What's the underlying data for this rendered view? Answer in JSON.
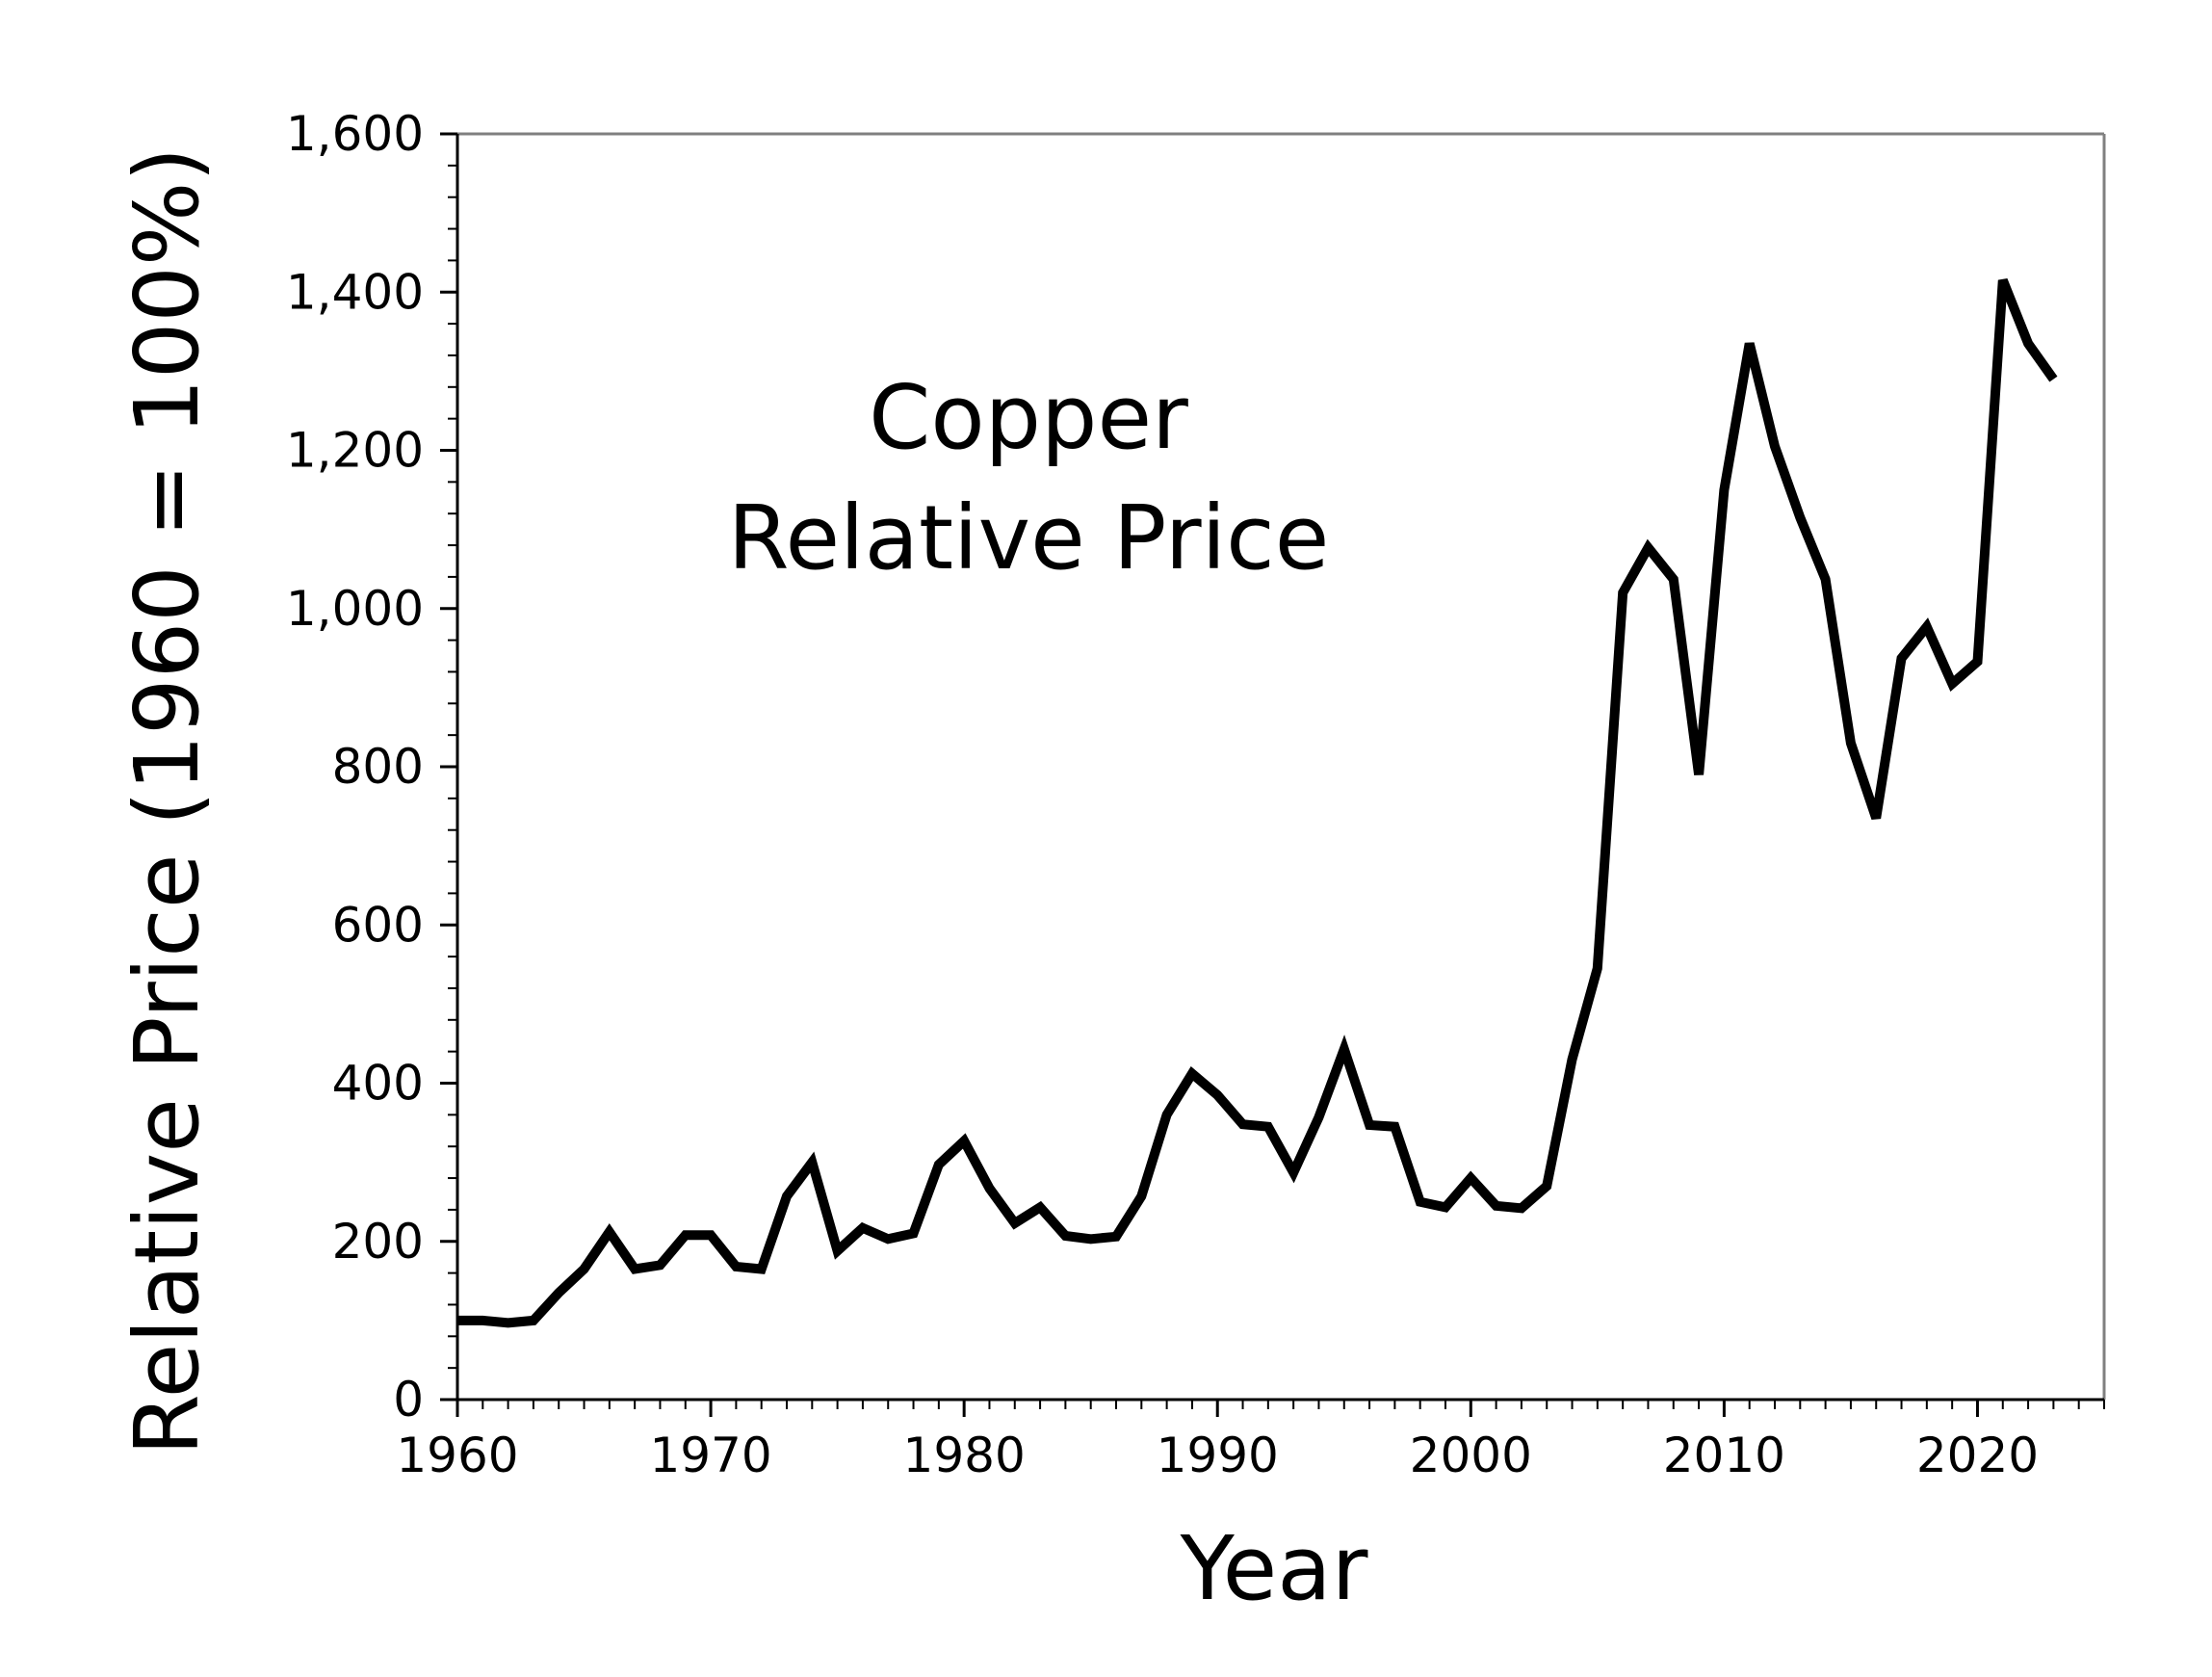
{
  "chart_data": {
    "type": "line",
    "title_lines": [
      "Copper",
      "Relative Price"
    ],
    "xlabel": "Year",
    "ylabel": "Relative Price (1960 = 100%)",
    "xlim": [
      1960,
      2025
    ],
    "ylim": [
      0,
      1600
    ],
    "x_ticks": [
      1960,
      1970,
      1980,
      1990,
      2000,
      2010,
      2020
    ],
    "x_tick_labels": [
      "1960",
      "1970",
      "1980",
      "1990",
      "2000",
      "2010",
      "2020"
    ],
    "y_ticks": [
      0,
      200,
      400,
      600,
      800,
      1000,
      1200,
      1400,
      1600
    ],
    "y_tick_labels": [
      "0",
      "200",
      "400",
      "600",
      "800",
      "1,000",
      "1,200",
      "1,400",
      "1,600"
    ],
    "x_minor_step": 1,
    "y_minor_step": 40,
    "grid": false,
    "line_color": "#000000",
    "frame_color": "#808080",
    "x": [
      1960,
      1961,
      1962,
      1963,
      1964,
      1965,
      1966,
      1967,
      1968,
      1969,
      1970,
      1971,
      1972,
      1973,
      1974,
      1975,
      1976,
      1977,
      1978,
      1979,
      1980,
      1981,
      1982,
      1983,
      1984,
      1985,
      1986,
      1987,
      1988,
      1989,
      1990,
      1991,
      1992,
      1993,
      1994,
      1995,
      1996,
      1997,
      1998,
      1999,
      2000,
      2001,
      2002,
      2003,
      2004,
      2005,
      2006,
      2007,
      2008,
      2009,
      2010,
      2011,
      2012,
      2013,
      2014,
      2015,
      2016,
      2017,
      2018,
      2019,
      2020,
      2021,
      2022,
      2023
    ],
    "y": [
      100,
      100,
      97,
      100,
      135,
      165,
      212,
      165,
      170,
      208,
      208,
      168,
      165,
      257,
      300,
      188,
      217,
      203,
      210,
      297,
      327,
      267,
      223,
      243,
      207,
      203,
      206,
      257,
      360,
      412,
      385,
      348,
      345,
      287,
      357,
      443,
      347,
      345,
      250,
      243,
      280,
      245,
      242,
      270,
      430,
      545,
      1020,
      1077,
      1037,
      790,
      1150,
      1335,
      1205,
      1115,
      1037,
      830,
      735,
      937,
      977,
      905,
      933,
      1415,
      1335,
      1290
    ]
  }
}
